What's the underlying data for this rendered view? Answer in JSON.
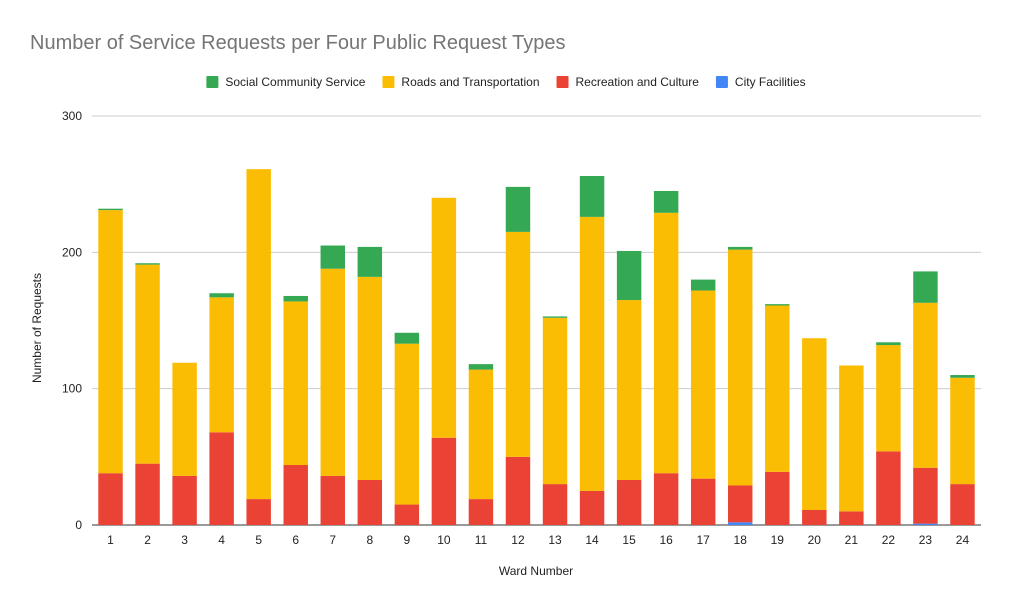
{
  "chart_data": {
    "type": "bar",
    "stacked": true,
    "title": "Number of Service Requests per Four Public Request Types",
    "xlabel": "Ward Number",
    "ylabel": "Number of Requests",
    "ylim": [
      0,
      300
    ],
    "yticks": [
      "0",
      "100",
      "200",
      "300"
    ],
    "grid": true,
    "legend_position": "top",
    "categories": [
      "1",
      "2",
      "3",
      "4",
      "5",
      "6",
      "7",
      "8",
      "9",
      "10",
      "11",
      "12",
      "13",
      "14",
      "15",
      "16",
      "17",
      "18",
      "19",
      "20",
      "21",
      "22",
      "23",
      "24"
    ],
    "series": [
      {
        "name": "City Facilities",
        "color": "#4285f4",
        "values": [
          0,
          0,
          0,
          0,
          0,
          0,
          0,
          0,
          0,
          0,
          0,
          0,
          0,
          0,
          0,
          0,
          0,
          2,
          0,
          0,
          0,
          0,
          1,
          0
        ]
      },
      {
        "name": "Recreation and Culture",
        "color": "#ea4335",
        "values": [
          38,
          45,
          36,
          68,
          19,
          44,
          36,
          33,
          15,
          64,
          19,
          50,
          30,
          25,
          33,
          38,
          34,
          27,
          39,
          11,
          10,
          54,
          41,
          30
        ]
      },
      {
        "name": "Roads and Transportation",
        "color": "#fbbc04",
        "values": [
          193,
          146,
          83,
          99,
          242,
          120,
          152,
          149,
          118,
          176,
          95,
          165,
          122,
          201,
          132,
          191,
          138,
          173,
          122,
          126,
          107,
          78,
          121,
          78
        ]
      },
      {
        "name": "Social Community Service",
        "color": "#34a853",
        "values": [
          1,
          1,
          0,
          3,
          0,
          4,
          17,
          22,
          8,
          0,
          4,
          33,
          1,
          30,
          36,
          16,
          8,
          2,
          1,
          0,
          0,
          2,
          23,
          2
        ]
      }
    ],
    "legend_order": [
      "Social Community Service",
      "Roads and Transportation",
      "Recreation and Culture",
      "City Facilities"
    ]
  }
}
